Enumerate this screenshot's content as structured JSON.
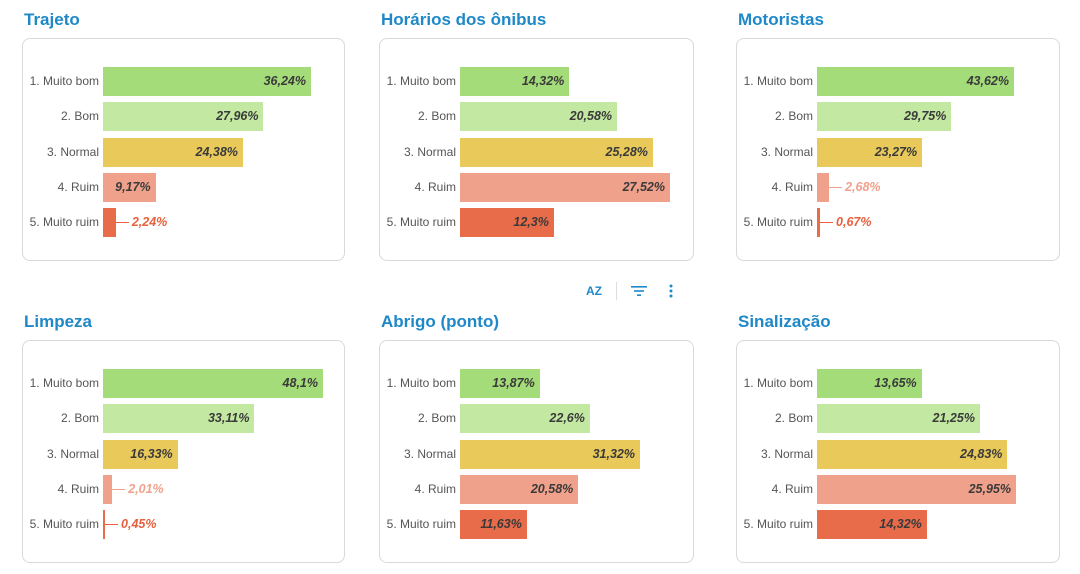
{
  "categories": [
    "1. Muito bom",
    "2. Bom",
    "3. Normal",
    "4. Ruim",
    "5. Muito ruim"
  ],
  "colors": [
    "#a3dc78",
    "#c2e8a1",
    "#e8c95a",
    "#f0a18c",
    "#e86b4a"
  ],
  "outside_label_colors": [
    "#6aa84f",
    "#8cc46a",
    "#c9a52a",
    "#f0a18c",
    "#e8603d"
  ],
  "toolbar": {
    "sort_icon_label": "AZ"
  },
  "chart_data": [
    {
      "type": "bar",
      "title": "Trajeto",
      "categories": [
        "1. Muito bom",
        "2. Bom",
        "3. Normal",
        "4. Ruim",
        "5. Muito ruim"
      ],
      "values": [
        36.24,
        27.96,
        24.38,
        9.17,
        2.24
      ],
      "labels": [
        "36,24%",
        "27,96%",
        "24,38%",
        "9,17%",
        "2,24%"
      ]
    },
    {
      "type": "bar",
      "title": "Horários dos ônibus",
      "categories": [
        "1. Muito bom",
        "2. Bom",
        "3. Normal",
        "4. Ruim",
        "5. Muito ruim"
      ],
      "values": [
        14.32,
        20.58,
        25.28,
        27.52,
        12.3
      ],
      "labels": [
        "14,32%",
        "20,58%",
        "25,28%",
        "27,52%",
        "12,3%"
      ]
    },
    {
      "type": "bar",
      "title": "Motoristas",
      "categories": [
        "1. Muito bom",
        "2. Bom",
        "3. Normal",
        "4. Ruim",
        "5. Muito ruim"
      ],
      "values": [
        43.62,
        29.75,
        23.27,
        2.68,
        0.67
      ],
      "labels": [
        "43,62%",
        "29,75%",
        "23,27%",
        "2,68%",
        "0,67%"
      ]
    },
    {
      "type": "bar",
      "title": "Limpeza",
      "categories": [
        "1. Muito bom",
        "2. Bom",
        "3. Normal",
        "4. Ruim",
        "5. Muito ruim"
      ],
      "values": [
        48.1,
        33.11,
        16.33,
        2.01,
        0.45
      ],
      "labels": [
        "48,1%",
        "33,11%",
        "16,33%",
        "2,01%",
        "0,45%"
      ]
    },
    {
      "type": "bar",
      "title": "Abrigo (ponto)",
      "categories": [
        "1. Muito bom",
        "2. Bom",
        "3. Normal",
        "4. Ruim",
        "5. Muito ruim"
      ],
      "values": [
        13.87,
        22.6,
        31.32,
        20.58,
        11.63
      ],
      "labels": [
        "13,87%",
        "22,6%",
        "31,32%",
        "20,58%",
        "11,63%"
      ]
    },
    {
      "type": "bar",
      "title": "Sinalização",
      "categories": [
        "1. Muito bom",
        "2. Bom",
        "3. Normal",
        "4. Ruim",
        "5. Muito ruim"
      ],
      "values": [
        13.65,
        21.25,
        24.83,
        25.95,
        14.32
      ],
      "labels": [
        "13,65%",
        "21,25%",
        "24,83%",
        "25,95%",
        "14,32%"
      ]
    }
  ]
}
